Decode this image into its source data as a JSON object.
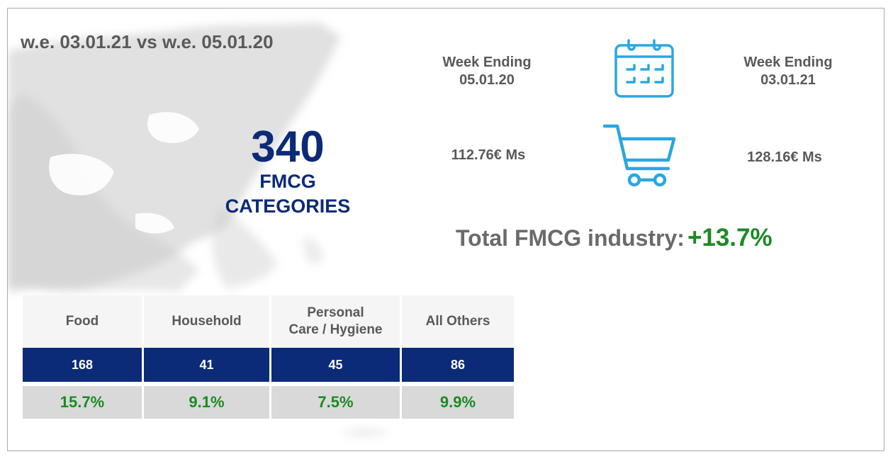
{
  "period": "w.e. 03.01.21 vs w.e. 05.01.20",
  "categories_count": "340",
  "categories_label_1": "FMCG",
  "categories_label_2": "CATEGORIES",
  "week_previous": {
    "label": "Week Ending",
    "date": "05.01.20",
    "value": "112.76€ Ms"
  },
  "week_current": {
    "label": "Week Ending",
    "date": "03.01.21",
    "value": "128.16€ Ms"
  },
  "total": {
    "label": "Total FMCG industry:",
    "change": "+13.7%"
  },
  "icons": {
    "calendar": "calendar-icon",
    "cart": "shopping-cart-icon",
    "map": "greece-map"
  },
  "colors": {
    "navy": "#0b2a78",
    "green": "#1c8a24",
    "icon_blue": "#2aa7e0",
    "grey_text": "#595959"
  },
  "table": [
    {
      "header_1": "Food",
      "header_2": "",
      "count": "168",
      "change": "15.7%"
    },
    {
      "header_1": "Household",
      "header_2": "",
      "count": "41",
      "change": "9.1%"
    },
    {
      "header_1": "Personal",
      "header_2": "Care / Hygiene",
      "count": "45",
      "change": "7.5%"
    },
    {
      "header_1": "All Others",
      "header_2": "",
      "count": "86",
      "change": "9.9%"
    }
  ]
}
